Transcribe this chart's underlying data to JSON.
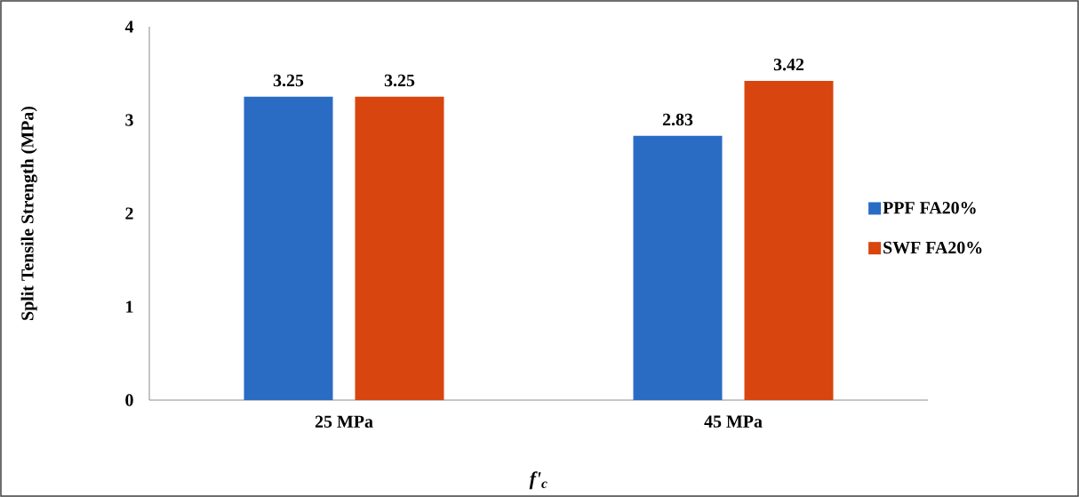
{
  "chart_data": {
    "type": "bar",
    "xlabel": "f'$_{c}$",
    "ylabel": "Split Tensile Strength (MPa)",
    "categories": [
      "25 MPa",
      "45 MPa"
    ],
    "series": [
      {
        "name": "PPF FA20%",
        "color": "#2a6cc3",
        "values": [
          3.25,
          2.83
        ]
      },
      {
        "name": "SWF FA20%",
        "color": "#d8450f",
        "values": [
          3.25,
          3.42
        ]
      }
    ],
    "ylim": [
      0,
      4
    ],
    "yticks": [
      0,
      1,
      2,
      3,
      4
    ],
    "data_labels": true,
    "legend": "right",
    "grid": false
  }
}
